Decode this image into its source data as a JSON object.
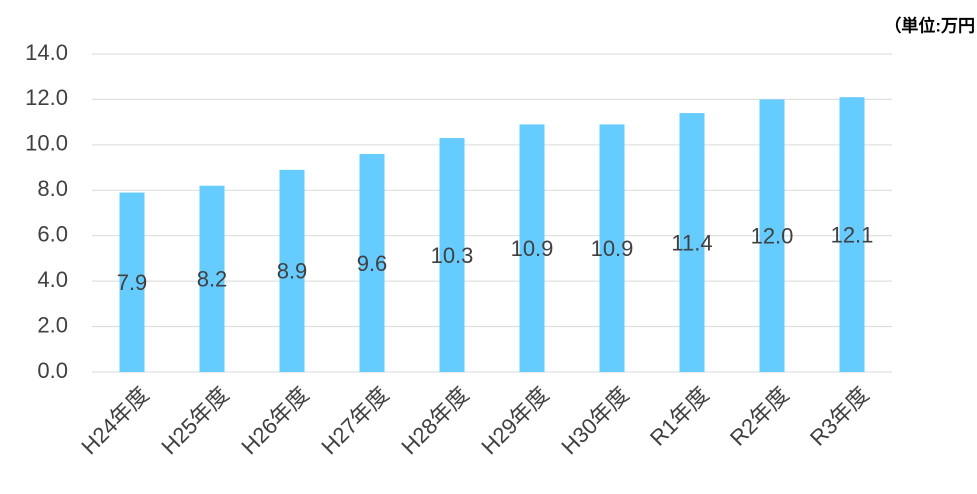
{
  "chart_data": {
    "type": "bar",
    "unit_label": "（単位:万円",
    "categories": [
      "H24年度",
      "H25年度",
      "H26年度",
      "H27年度",
      "H28年度",
      "H29年度",
      "H30年度",
      "R1年度",
      "R2年度",
      "R3年度"
    ],
    "values": [
      7.9,
      8.2,
      8.9,
      9.6,
      10.3,
      10.9,
      10.9,
      11.4,
      12.0,
      12.1
    ],
    "value_labels": [
      "7.9",
      "8.2",
      "8.9",
      "9.6",
      "10.3",
      "10.9",
      "10.9",
      "11.4",
      "12.0",
      "12.1"
    ],
    "color": "#66ccff",
    "ylim": [
      0,
      14
    ],
    "yticks": [
      {
        "value": 0,
        "label": "0.0"
      },
      {
        "value": 2,
        "label": "2.0"
      },
      {
        "value": 4,
        "label": "4.0"
      },
      {
        "value": 6,
        "label": "6.0"
      },
      {
        "value": 8,
        "label": "8.0"
      },
      {
        "value": 10,
        "label": "10.0"
      },
      {
        "value": 12,
        "label": "12.0"
      },
      {
        "value": 14,
        "label": "14.0"
      }
    ],
    "grid": true
  }
}
